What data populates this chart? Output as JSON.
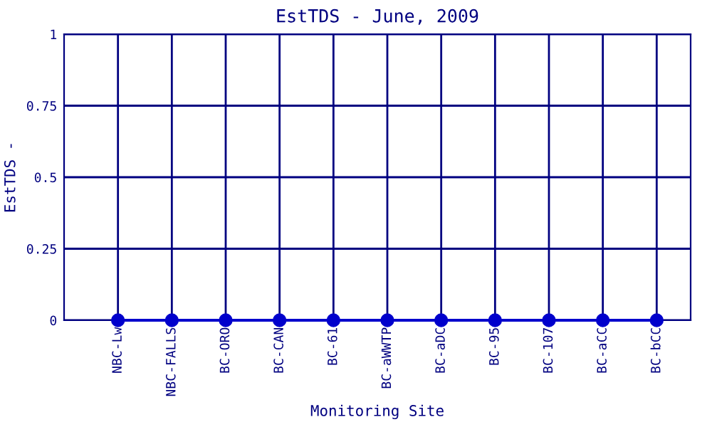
{
  "chart_data": {
    "type": "line",
    "title": "EstTDS - June, 2009",
    "xlabel": "Monitoring Site",
    "ylabel": "EstTDS -",
    "categories": [
      "NBC-Lw",
      "NBC-FALLS",
      "BC-ORO",
      "BC-CAN",
      "BC-61",
      "BC-aWWTP",
      "BC-aDC",
      "BC-95",
      "BC-107",
      "BC-aCC",
      "BC-bCC"
    ],
    "series": [
      {
        "color": "#0000cc",
        "values": [
          0,
          0,
          0,
          0,
          0,
          0,
          0,
          0,
          0,
          0,
          0
        ]
      }
    ],
    "ylim": [
      0,
      1
    ],
    "yticks": [
      0,
      0.25,
      0.5,
      0.75,
      1
    ],
    "grid": true,
    "marker": "circle",
    "line_style": "solid",
    "legend": false
  }
}
